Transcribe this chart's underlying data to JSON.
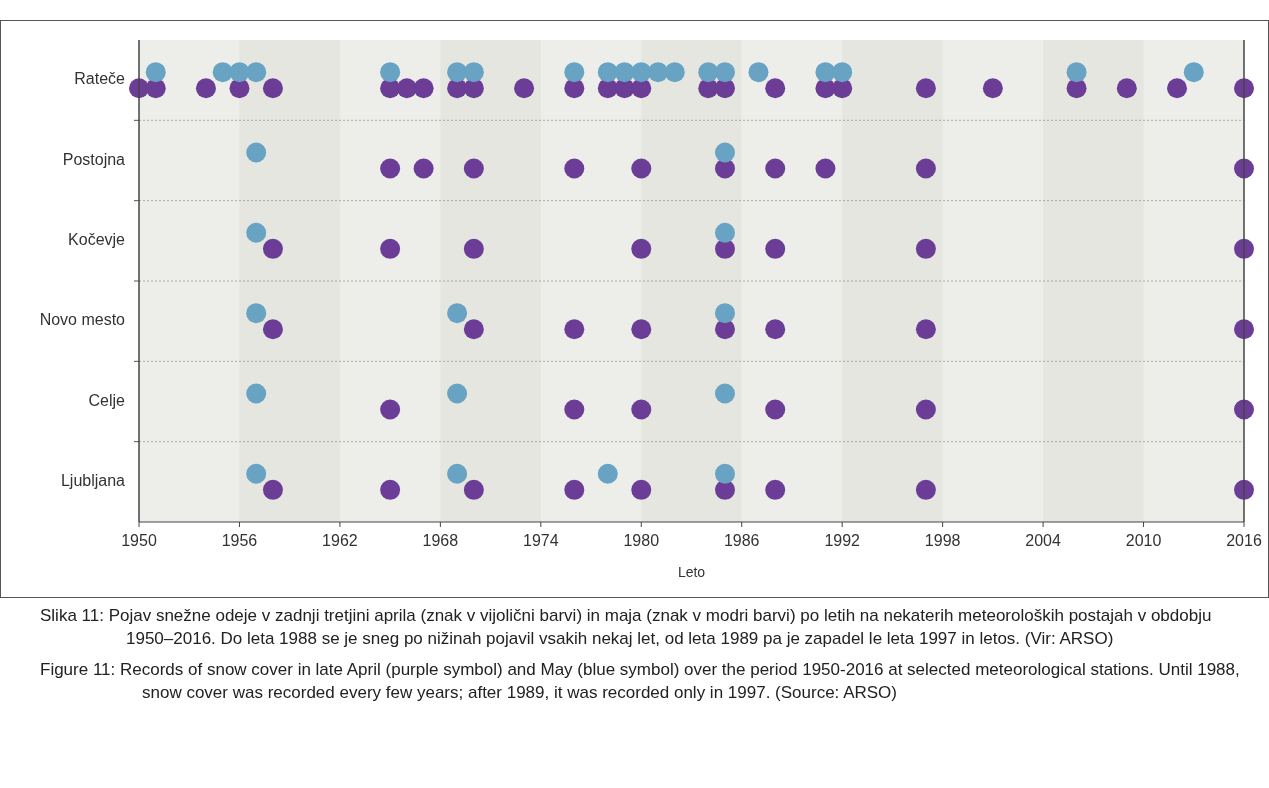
{
  "chart_data": {
    "type": "scatter",
    "orientation": "horizontal",
    "xlabel": "Leto",
    "xlim": [
      1950,
      2016
    ],
    "xticks": [
      1950,
      1956,
      1962,
      1968,
      1974,
      1980,
      1986,
      1992,
      1998,
      2004,
      2010,
      2016
    ],
    "categories": [
      "Rateče",
      "Postojna",
      "Kočevje",
      "Novo mesto",
      "Celje",
      "Ljubljana"
    ],
    "marker": "circle",
    "series": [
      {
        "color": "#6b3d97",
        "values": [
          1950,
          1951,
          1954,
          1956,
          1958,
          1965,
          1966,
          1967,
          1969,
          1970,
          1973,
          1976,
          1978,
          1979,
          1980,
          1984,
          1985,
          1988,
          1991,
          1992,
          1997,
          2001,
          2006,
          2009,
          2012,
          2016,
          1965,
          1967,
          1970,
          1976,
          1980,
          1985,
          1988,
          1991,
          1997,
          2016,
          1958,
          1965,
          1970,
          1980,
          1985,
          1988,
          1997,
          2016,
          1958,
          1970,
          1976,
          1980,
          1985,
          1988,
          1997,
          2016,
          1965,
          1976,
          1980,
          1988,
          1997,
          2016,
          1958,
          1965,
          1970,
          1976,
          1980,
          1985,
          1988,
          1997,
          2016
        ],
        "x": [
          "Rateče",
          "Rateče",
          "Rateče",
          "Rateče",
          "Rateče",
          "Rateče",
          "Rateče",
          "Rateče",
          "Rateče",
          "Rateče",
          "Rateče",
          "Rateče",
          "Rateče",
          "Rateče",
          "Rateče",
          "Rateče",
          "Rateče",
          "Rateče",
          "Rateče",
          "Rateče",
          "Rateče",
          "Rateče",
          "Rateče",
          "Rateče",
          "Rateče",
          "Rateče",
          "Postojna",
          "Postojna",
          "Postojna",
          "Postojna",
          "Postojna",
          "Postojna",
          "Postojna",
          "Postojna",
          "Postojna",
          "Postojna",
          "Kočevje",
          "Kočevje",
          "Kočevje",
          "Kočevje",
          "Kočevje",
          "Kočevje",
          "Kočevje",
          "Kočevje",
          "Novo mesto",
          "Novo mesto",
          "Novo mesto",
          "Novo mesto",
          "Novo mesto",
          "Novo mesto",
          "Novo mesto",
          "Novo mesto",
          "Celje",
          "Celje",
          "Celje",
          "Celje",
          "Celje",
          "Celje",
          "Ljubljana",
          "Ljubljana",
          "Ljubljana",
          "Ljubljana",
          "Ljubljana",
          "Ljubljana",
          "Ljubljana",
          "Ljubljana",
          "Ljubljana"
        ]
      },
      {
        "color": "#68a3c3",
        "values": [
          1951,
          1955,
          1956,
          1957,
          1965,
          1969,
          1970,
          1976,
          1978,
          1979,
          1980,
          1981,
          1982,
          1984,
          1985,
          1987,
          1991,
          1992,
          2006,
          2013,
          1957,
          1985,
          1957,
          1985,
          1957,
          1969,
          1985,
          1957,
          1969,
          1985,
          1957,
          1969,
          1978,
          1985
        ],
        "x": [
          "Rateče",
          "Rateče",
          "Rateče",
          "Rateče",
          "Rateče",
          "Rateče",
          "Rateče",
          "Rateče",
          "Rateče",
          "Rateče",
          "Rateče",
          "Rateče",
          "Rateče",
          "Rateče",
          "Rateče",
          "Rateče",
          "Rateče",
          "Rateče",
          "Rateče",
          "Rateče",
          "Postojna",
          "Postojna",
          "Kočevje",
          "Kočevje",
          "Novo mesto",
          "Novo mesto",
          "Novo mesto",
          "Celje",
          "Celje",
          "Celje",
          "Ljubljana",
          "Ljubljana",
          "Ljubljana",
          "Ljubljana"
        ]
      }
    ],
    "bands": [
      {
        "axis": "x",
        "from": 1956,
        "to": 1962,
        "color": "#e6e6e0"
      },
      {
        "axis": "x",
        "from": 1968,
        "to": 1974,
        "color": "#e6e6e0"
      },
      {
        "axis": "x",
        "from": 1980,
        "to": 1986,
        "color": "#e6e6e0"
      },
      {
        "axis": "x",
        "from": 1992,
        "to": 1998,
        "color": "#e6e6e0"
      },
      {
        "axis": "x",
        "from": 2004,
        "to": 2010,
        "color": "#e6e6e0"
      }
    ],
    "annotations": [
      "Slika 11: Pojav snežne odeje v zadnji tretjini aprila (znak v vijolični barvi) in maja (znak v modri barvi) po letih na nekaterih meteoroloških postajah v obdobju 1950–2016. Do leta 1988 se je sneg po nižinah pojavil vsakih nekaj let, od leta 1989 pa je zapadel le leta 1997 in letos. (Vir: ARSO)",
      "Figure 11: Records of snow cover in late April (purple symbol) and May (blue symbol) over the period 1950-2016 at selected meteorological stations. Until 1988, snow cover was recorded every few years; after 1989, it was recorded only in 1997. (Source: ARSO)"
    ]
  }
}
